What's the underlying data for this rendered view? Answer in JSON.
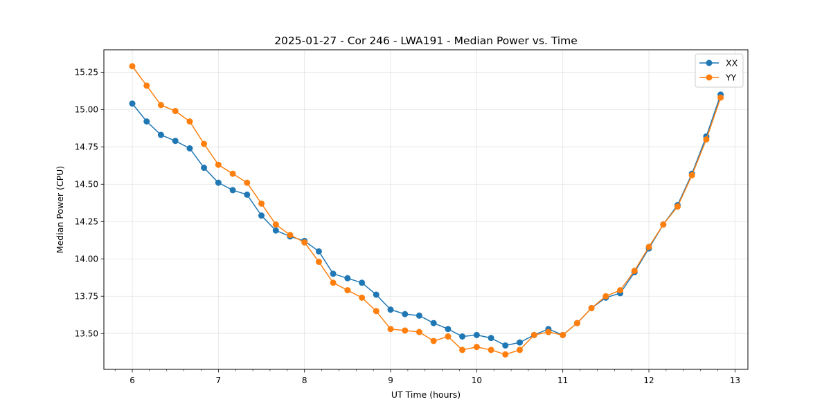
{
  "chart_data": {
    "type": "line",
    "title": "2025-01-27 - Cor 246 - LWA191 - Median Power vs. Time",
    "xlabel": "UT Time (hours)",
    "ylabel": "Median Power (CPU)",
    "xlim": [
      5.67,
      13.15
    ],
    "ylim": [
      13.26,
      15.4
    ],
    "xticks": [
      6,
      7,
      8,
      9,
      10,
      11,
      12,
      13
    ],
    "xtick_labels": [
      "6",
      "7",
      "8",
      "9",
      "10",
      "11",
      "12",
      "13"
    ],
    "yticks": [
      13.5,
      13.75,
      14.0,
      14.25,
      14.5,
      14.75,
      15.0,
      15.25
    ],
    "ytick_labels": [
      "13.50",
      "13.75",
      "14.00",
      "14.25",
      "14.50",
      "14.75",
      "15.00",
      "15.25"
    ],
    "grid": true,
    "legend_position": "top-right",
    "x": [
      6.0,
      6.167,
      6.333,
      6.5,
      6.667,
      6.833,
      7.0,
      7.167,
      7.333,
      7.5,
      7.667,
      7.833,
      8.0,
      8.167,
      8.333,
      8.5,
      8.667,
      8.833,
      9.0,
      9.167,
      9.333,
      9.5,
      9.667,
      9.833,
      10.0,
      10.167,
      10.333,
      10.5,
      10.667,
      10.833,
      11.0,
      11.167,
      11.333,
      11.5,
      11.667,
      11.833,
      12.0,
      12.167,
      12.333,
      12.5,
      12.667,
      12.833
    ],
    "series": [
      {
        "name": "XX",
        "color": "#1f77b4",
        "values": [
          15.04,
          14.92,
          14.83,
          14.79,
          14.74,
          14.61,
          14.51,
          14.46,
          14.43,
          14.29,
          14.19,
          14.15,
          14.12,
          14.05,
          13.9,
          13.87,
          13.84,
          13.76,
          13.66,
          13.63,
          13.62,
          13.57,
          13.53,
          13.48,
          13.49,
          13.47,
          13.42,
          13.44,
          13.49,
          13.53,
          13.49,
          13.57,
          13.67,
          13.74,
          13.77,
          13.91,
          14.07,
          14.23,
          14.36,
          14.57,
          14.82,
          15.1
        ]
      },
      {
        "name": "YY",
        "color": "#ff7f0e",
        "values": [
          15.29,
          15.16,
          15.03,
          14.99,
          14.92,
          14.77,
          14.63,
          14.57,
          14.51,
          14.37,
          14.23,
          14.16,
          14.11,
          13.98,
          13.84,
          13.79,
          13.74,
          13.65,
          13.53,
          13.52,
          13.51,
          13.45,
          13.48,
          13.39,
          13.41,
          13.39,
          13.36,
          13.39,
          13.49,
          13.51,
          13.49,
          13.57,
          13.67,
          13.75,
          13.79,
          13.92,
          14.08,
          14.23,
          14.35,
          14.56,
          14.8,
          15.08
        ]
      }
    ]
  }
}
